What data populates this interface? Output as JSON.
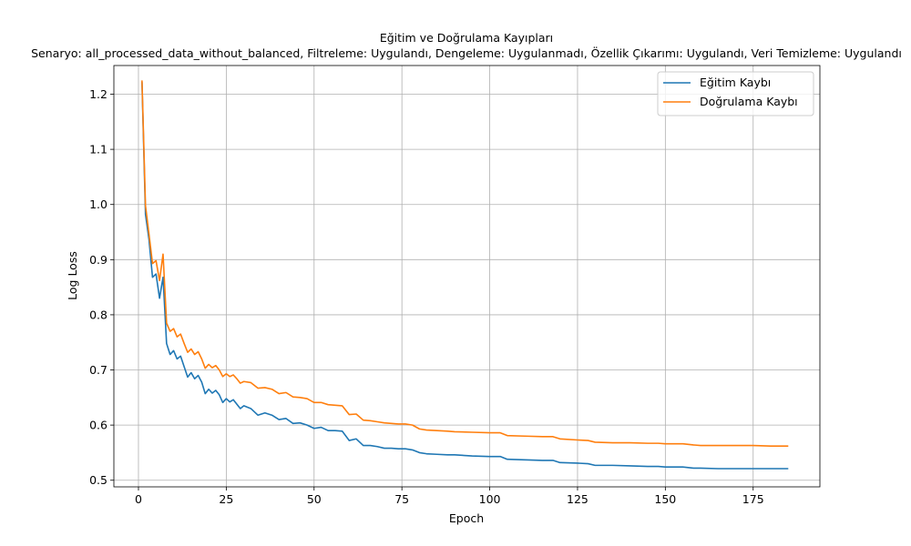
{
  "chart_data": {
    "type": "line",
    "title": "Eğitim ve Doğrulama Kayıpları",
    "subtitle": "Senaryo: all_processed_data_without_balanced, Filtreleme: Uygulandı, Dengeleme: Uygulanmadı, Özellik Çıkarımı: Uygulandı, Veri Temizleme: Uygulandı",
    "xlabel": "Epoch",
    "ylabel": "Log Loss",
    "xlim": [
      -7,
      194
    ],
    "ylim": [
      0.488,
      1.252
    ],
    "xticks": [
      0,
      25,
      50,
      75,
      100,
      125,
      150,
      175
    ],
    "yticks": [
      0.5,
      0.6,
      0.7,
      0.8,
      0.9,
      1.0,
      1.1,
      1.2
    ],
    "ytick_labels": [
      "0.5",
      "0.6",
      "0.7",
      "0.8",
      "0.9",
      "1.0",
      "1.1",
      "1.2"
    ],
    "grid": true,
    "legend_position": "top-right",
    "series": [
      {
        "name": "Eğitim Kaybı",
        "color": "#1f77b4",
        "x": [
          1,
          2,
          3,
          4,
          5,
          6,
          7,
          8,
          9,
          10,
          11,
          12,
          13,
          14,
          15,
          16,
          17,
          18,
          19,
          20,
          21,
          22,
          23,
          24,
          25,
          26,
          27,
          28,
          29,
          30,
          32,
          34,
          36,
          38,
          40,
          42,
          44,
          46,
          48,
          50,
          52,
          54,
          56,
          58,
          60,
          62,
          64,
          66,
          68,
          70,
          72,
          74,
          76,
          78,
          80,
          82,
          85,
          88,
          90,
          95,
          100,
          103,
          105,
          110,
          115,
          118,
          120,
          125,
          128,
          130,
          135,
          140,
          145,
          148,
          150,
          155,
          158,
          160,
          165,
          170,
          175,
          180,
          185
        ],
        "values": [
          1.222,
          0.982,
          0.936,
          0.868,
          0.874,
          0.83,
          0.868,
          0.748,
          0.728,
          0.735,
          0.72,
          0.725,
          0.706,
          0.687,
          0.695,
          0.684,
          0.69,
          0.678,
          0.657,
          0.665,
          0.658,
          0.663,
          0.655,
          0.641,
          0.648,
          0.642,
          0.646,
          0.638,
          0.63,
          0.635,
          0.63,
          0.618,
          0.622,
          0.618,
          0.61,
          0.612,
          0.603,
          0.604,
          0.6,
          0.594,
          0.596,
          0.59,
          0.59,
          0.589,
          0.572,
          0.575,
          0.563,
          0.563,
          0.561,
          0.558,
          0.558,
          0.557,
          0.557,
          0.555,
          0.55,
          0.548,
          0.547,
          0.546,
          0.546,
          0.544,
          0.543,
          0.543,
          0.538,
          0.537,
          0.536,
          0.536,
          0.532,
          0.531,
          0.53,
          0.527,
          0.527,
          0.526,
          0.525,
          0.525,
          0.524,
          0.524,
          0.522,
          0.522,
          0.521,
          0.521,
          0.521,
          0.521,
          0.521
        ]
      },
      {
        "name": "Doğrulama Kaybı",
        "color": "#ff7f0e",
        "x": [
          1,
          2,
          3,
          4,
          5,
          6,
          7,
          8,
          9,
          10,
          11,
          12,
          13,
          14,
          15,
          16,
          17,
          18,
          19,
          20,
          21,
          22,
          23,
          24,
          25,
          26,
          27,
          28,
          29,
          30,
          32,
          34,
          36,
          38,
          40,
          42,
          44,
          46,
          48,
          50,
          52,
          54,
          56,
          58,
          60,
          62,
          64,
          66,
          68,
          70,
          72,
          74,
          76,
          78,
          80,
          82,
          85,
          88,
          90,
          95,
          100,
          103,
          105,
          110,
          115,
          118,
          120,
          125,
          128,
          130,
          135,
          140,
          145,
          148,
          150,
          155,
          158,
          160,
          165,
          170,
          175,
          180,
          185
        ],
        "values": [
          1.225,
          0.998,
          0.946,
          0.893,
          0.898,
          0.862,
          0.91,
          0.785,
          0.77,
          0.775,
          0.76,
          0.765,
          0.748,
          0.732,
          0.738,
          0.728,
          0.733,
          0.72,
          0.703,
          0.71,
          0.704,
          0.708,
          0.7,
          0.688,
          0.693,
          0.688,
          0.691,
          0.684,
          0.676,
          0.679,
          0.677,
          0.667,
          0.668,
          0.665,
          0.657,
          0.659,
          0.651,
          0.65,
          0.648,
          0.641,
          0.641,
          0.637,
          0.636,
          0.635,
          0.619,
          0.62,
          0.609,
          0.608,
          0.606,
          0.604,
          0.603,
          0.602,
          0.602,
          0.6,
          0.593,
          0.591,
          0.59,
          0.589,
          0.588,
          0.587,
          0.586,
          0.586,
          0.581,
          0.58,
          0.579,
          0.579,
          0.575,
          0.573,
          0.572,
          0.569,
          0.568,
          0.568,
          0.567,
          0.567,
          0.566,
          0.566,
          0.564,
          0.563,
          0.563,
          0.563,
          0.563,
          0.562,
          0.562
        ]
      }
    ]
  }
}
